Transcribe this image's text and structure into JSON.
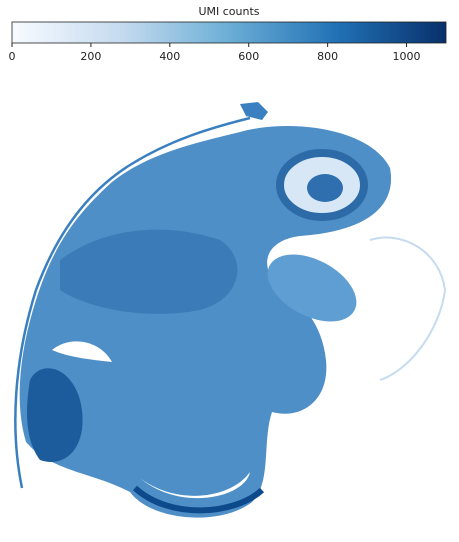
{
  "chart_data": {
    "type": "heatmap",
    "colorbar_label": "UMI counts",
    "clim": [
      0,
      1100
    ],
    "cticks": [
      0,
      200,
      400,
      600,
      800,
      1000
    ],
    "colormap": [
      "#f7fbff",
      "#c6dbef",
      "#6baed6",
      "#2171b5",
      "#08306b"
    ]
  }
}
